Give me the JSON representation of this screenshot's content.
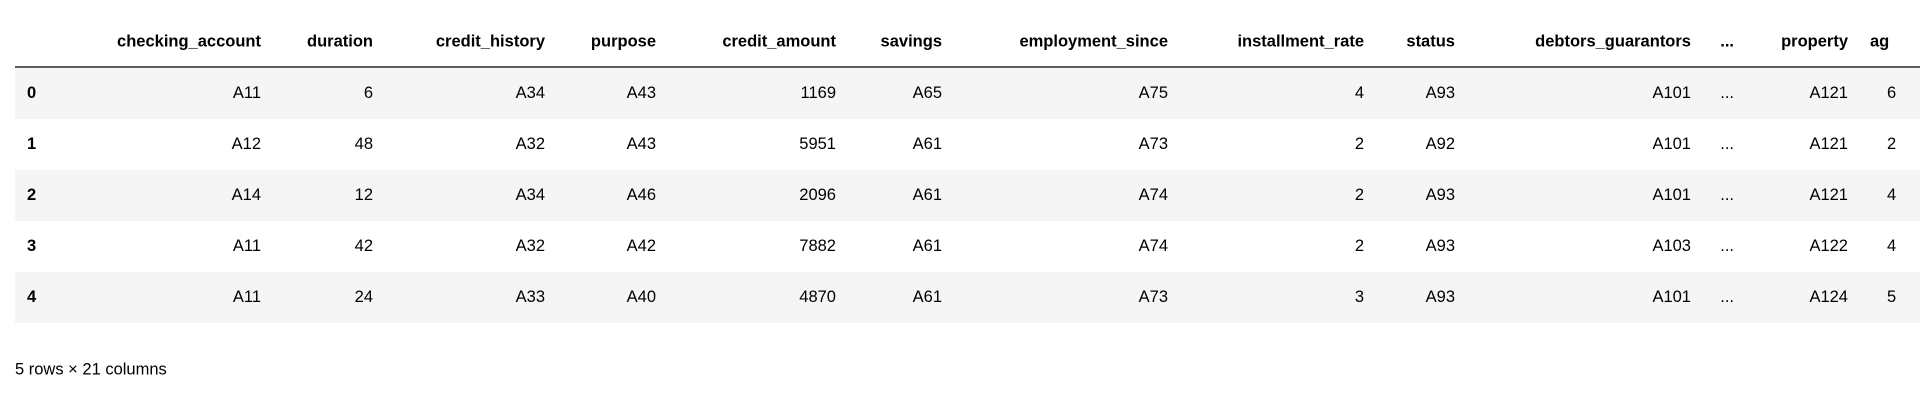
{
  "table": {
    "columns": [
      "checking_account",
      "duration",
      "credit_history",
      "purpose",
      "credit_amount",
      "savings",
      "employment_since",
      "installment_rate",
      "status",
      "debtors_guarantors",
      "...",
      "property",
      "ag"
    ],
    "index": [
      "0",
      "1",
      "2",
      "3",
      "4"
    ],
    "rows": [
      [
        "A11",
        6,
        "A34",
        "A43",
        1169,
        "A65",
        "A75",
        4,
        "A93",
        "A101",
        "...",
        "A121",
        "6"
      ],
      [
        "A12",
        48,
        "A32",
        "A43",
        5951,
        "A61",
        "A73",
        2,
        "A92",
        "A101",
        "...",
        "A121",
        "2"
      ],
      [
        "A14",
        12,
        "A34",
        "A46",
        2096,
        "A61",
        "A74",
        2,
        "A93",
        "A101",
        "...",
        "A121",
        "4"
      ],
      [
        "A11",
        42,
        "A32",
        "A42",
        7882,
        "A61",
        "A74",
        2,
        "A93",
        "A103",
        "...",
        "A122",
        "4"
      ],
      [
        "A11",
        24,
        "A33",
        "A40",
        4870,
        "A61",
        "A73",
        3,
        "A93",
        "A101",
        "...",
        "A124",
        "5"
      ]
    ]
  },
  "footer": "5 rows × 21 columns"
}
